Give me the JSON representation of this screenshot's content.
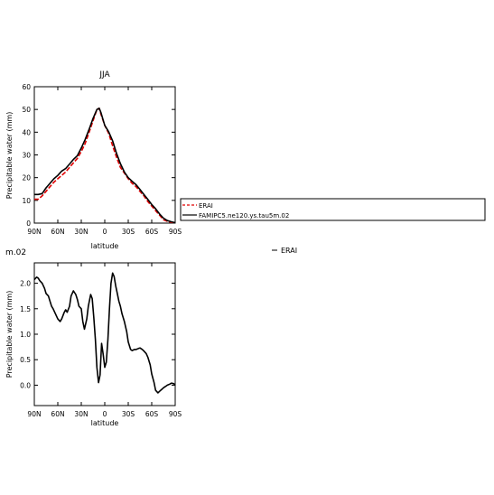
{
  "chart_data": [
    {
      "type": "line",
      "title": "JJA",
      "xlabel": "latitude",
      "ylabel": "Precipitable water (mm)",
      "xlim": [
        90,
        -90
      ],
      "ylim": [
        0,
        60
      ],
      "x_ticks": [
        90,
        60,
        30,
        0,
        -30,
        -60,
        -90
      ],
      "x_tick_labels": [
        "90N",
        "60N",
        "30N",
        "0",
        "30S",
        "60S",
        "90S"
      ],
      "y_ticks": [
        0,
        10,
        20,
        30,
        40,
        50,
        60
      ],
      "y_tick_labels": [
        "0",
        "10",
        "20",
        "30",
        "40",
        "50",
        "60"
      ],
      "legend_position": "right",
      "series": [
        {
          "name": "ERAI",
          "color": "#e00000",
          "dash": "dashed",
          "x": [
            90,
            85,
            80,
            75,
            70,
            65,
            60,
            55,
            50,
            45,
            40,
            35,
            30,
            25,
            20,
            15,
            10,
            7,
            5,
            0,
            -5,
            -10,
            -15,
            -20,
            -25,
            -30,
            -35,
            -40,
            -45,
            -50,
            -55,
            -60,
            -65,
            -70,
            -75,
            -80,
            -85,
            -90
          ],
          "y": [
            10.5,
            10.5,
            12.0,
            14.0,
            16.0,
            18.0,
            19.5,
            21.0,
            22.5,
            24.5,
            26.5,
            28.5,
            31.5,
            35.0,
            40.0,
            45.0,
            50.0,
            50.5,
            48.0,
            43.0,
            39.5,
            34.0,
            29.0,
            24.5,
            22.0,
            19.5,
            17.5,
            16.0,
            14.0,
            12.0,
            9.5,
            7.5,
            5.5,
            3.5,
            1.5,
            0.8,
            0.3,
            0.2
          ]
        },
        {
          "name": "FAMIPC5.ne120.ys.tau5m.02",
          "color": "#000000",
          "dash": "solid",
          "x": [
            90,
            85,
            80,
            75,
            70,
            65,
            60,
            55,
            50,
            45,
            40,
            35,
            30,
            25,
            20,
            15,
            10,
            7,
            5,
            0,
            -5,
            -10,
            -15,
            -20,
            -25,
            -30,
            -35,
            -40,
            -45,
            -50,
            -55,
            -60,
            -65,
            -70,
            -75,
            -80,
            -85,
            -90
          ],
          "y": [
            12.6,
            12.6,
            13.0,
            15.5,
            17.5,
            19.5,
            21.0,
            22.9,
            24.0,
            26.0,
            28.0,
            29.7,
            33.0,
            36.8,
            41.3,
            46.0,
            50.0,
            50.5,
            48.7,
            43.0,
            40.2,
            36.2,
            30.7,
            26.2,
            22.5,
            20.0,
            18.4,
            16.9,
            14.8,
            12.6,
            10.4,
            8.2,
            6.3,
            4.0,
            2.2,
            1.1,
            0.6,
            0.2
          ]
        }
      ]
    },
    {
      "type": "line",
      "title": "m.02",
      "xlabel": "latitude",
      "ylabel": "Precipitable water (mm)",
      "xlim": [
        90,
        -90
      ],
      "ylim": [
        -0.4,
        2.4
      ],
      "x_ticks": [
        90,
        60,
        30,
        0,
        -30,
        -60,
        -90
      ],
      "x_tick_labels": [
        "90N",
        "60N",
        "30N",
        "0",
        "30S",
        "60S",
        "90S"
      ],
      "y_ticks": [
        0.0,
        0.5,
        1.0,
        1.5,
        2.0
      ],
      "y_tick_labels": [
        "0.0",
        "0.5",
        "1.0",
        "1.5",
        "2.0"
      ],
      "legend_position": "right",
      "legend_entries": [
        "ERAI"
      ],
      "series": [
        {
          "color": "#000000",
          "dash": "solid",
          "x": [
            90,
            87,
            85,
            83,
            80,
            77,
            75,
            72,
            70,
            68,
            66,
            63,
            60,
            57,
            55,
            52,
            50,
            48,
            45,
            43,
            40,
            37,
            35,
            33,
            30,
            28,
            26,
            23,
            21,
            18,
            16,
            14,
            12,
            10,
            8,
            6,
            4,
            2,
            0,
            -2,
            -4,
            -6,
            -8,
            -10,
            -12,
            -14,
            -16,
            -18,
            -20,
            -22,
            -25,
            -28,
            -30,
            -33,
            -35,
            -38,
            -40,
            -43,
            -45,
            -48,
            -50,
            -53,
            -55,
            -58,
            -60,
            -63,
            -65,
            -68,
            -70,
            -73,
            -75,
            -78,
            -80,
            -83,
            -85,
            -88,
            -90
          ],
          "y": [
            2.07,
            2.12,
            2.1,
            2.05,
            2.0,
            1.9,
            1.8,
            1.75,
            1.65,
            1.55,
            1.5,
            1.4,
            1.3,
            1.25,
            1.3,
            1.42,
            1.48,
            1.43,
            1.55,
            1.75,
            1.85,
            1.78,
            1.68,
            1.55,
            1.5,
            1.25,
            1.1,
            1.3,
            1.55,
            1.78,
            1.7,
            1.32,
            0.9,
            0.35,
            0.05,
            0.2,
            0.82,
            0.6,
            0.35,
            0.45,
            0.9,
            1.5,
            2.0,
            2.2,
            2.13,
            1.95,
            1.8,
            1.65,
            1.55,
            1.4,
            1.25,
            1.05,
            0.85,
            0.7,
            0.68,
            0.7,
            0.7,
            0.72,
            0.73,
            0.7,
            0.67,
            0.62,
            0.55,
            0.4,
            0.22,
            0.05,
            -0.1,
            -0.15,
            -0.12,
            -0.08,
            -0.05,
            -0.02,
            0.0,
            0.02,
            0.04,
            0.03,
            0.0
          ]
        }
      ]
    }
  ]
}
